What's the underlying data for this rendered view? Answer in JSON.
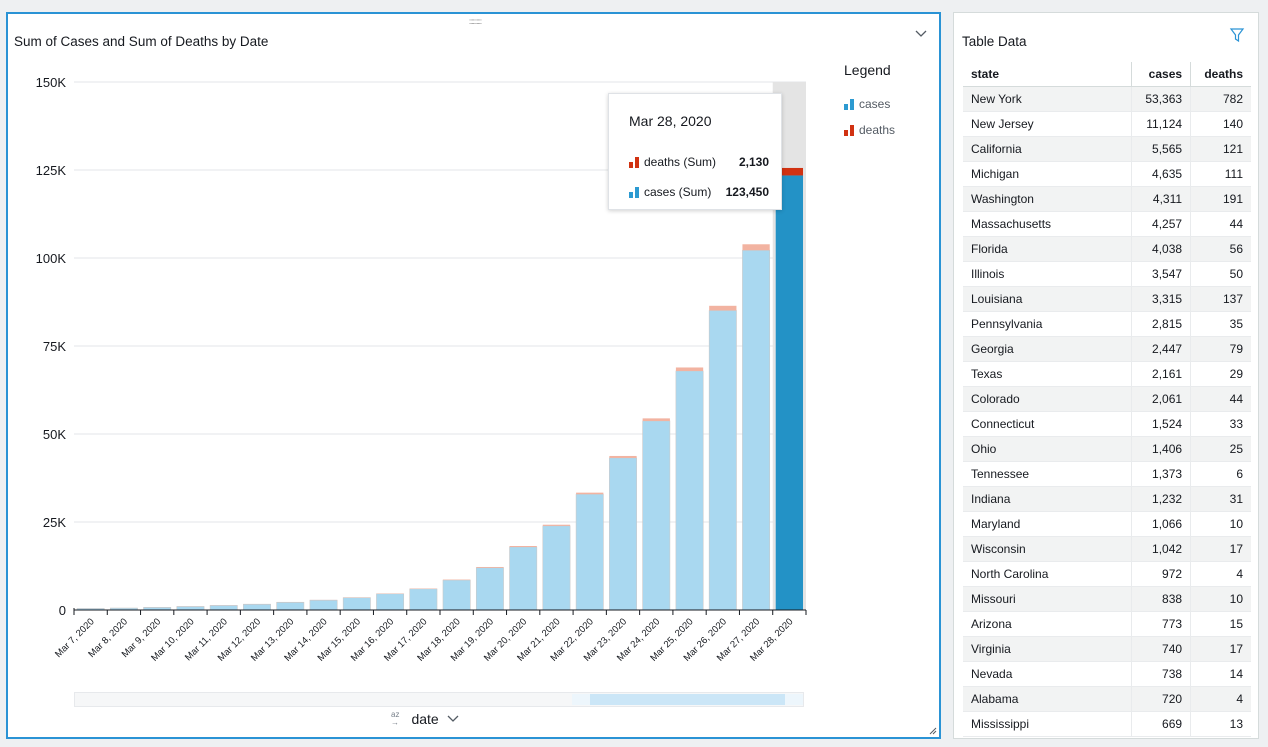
{
  "chart_panel": {
    "title": "Sum of Cases and Sum of Deaths by Date",
    "legend_title": "Legend",
    "legend": [
      {
        "label": "cases",
        "color": "#2c9ad1"
      },
      {
        "label": "deaths",
        "color": "#d13212"
      }
    ],
    "tooltip": {
      "date": "Mar 28, 2020",
      "rows": [
        {
          "label": "deaths (Sum)",
          "value": "2,130",
          "color": "#d13212"
        },
        {
          "label": "cases (Sum)",
          "value": "123,450",
          "color": "#2c9ad1"
        }
      ]
    },
    "x_field": {
      "label": "date",
      "sort_icon": "az-sort-icon",
      "chevron": "chevron-down-icon"
    },
    "menu_icon": "chevron-down-icon"
  },
  "chart_data": {
    "type": "bar",
    "stacked": true,
    "title": "Sum of Cases and Sum of Deaths by Date",
    "xlabel": "date",
    "ylabel": "",
    "ylim": [
      0,
      150000
    ],
    "yticks": [
      0,
      25000,
      50000,
      75000,
      100000,
      125000,
      150000
    ],
    "ytick_labels": [
      "0",
      "25K",
      "50K",
      "75K",
      "100K",
      "125K",
      "150K"
    ],
    "categories": [
      "Mar 7, 2020",
      "Mar 8, 2020",
      "Mar 9, 2020",
      "Mar 10, 2020",
      "Mar 11, 2020",
      "Mar 12, 2020",
      "Mar 13, 2020",
      "Mar 14, 2020",
      "Mar 15, 2020",
      "Mar 16, 2020",
      "Mar 17, 2020",
      "Mar 18, 2020",
      "Mar 19, 2020",
      "Mar 20, 2020",
      "Mar 21, 2020",
      "Mar 22, 2020",
      "Mar 23, 2020",
      "Mar 24, 2020",
      "Mar 25, 2020",
      "Mar 26, 2020",
      "Mar 27, 2020",
      "Mar 28, 2020"
    ],
    "series": [
      {
        "name": "cases",
        "values": [
          430,
          550,
          750,
          1000,
          1300,
          1650,
          2200,
          2800,
          3500,
          4600,
          6000,
          8500,
          12000,
          17900,
          23900,
          32900,
          43200,
          53700,
          67900,
          85100,
          102200,
          123450
        ]
      },
      {
        "name": "deaths",
        "values": [
          20,
          25,
          30,
          35,
          40,
          45,
          55,
          60,
          70,
          90,
          110,
          140,
          220,
          280,
          330,
          440,
          560,
          740,
          1000,
          1320,
          1700,
          2130
        ]
      }
    ],
    "highlighted_category": "Mar 28, 2020",
    "grid": true,
    "legend_position": "right"
  },
  "table_panel": {
    "title": "Table Data",
    "filter_icon": "filter-icon",
    "columns": [
      "state",
      "cases",
      "deaths"
    ],
    "rows": [
      [
        "New York",
        "53,363",
        "782"
      ],
      [
        "New Jersey",
        "11,124",
        "140"
      ],
      [
        "California",
        "5,565",
        "121"
      ],
      [
        "Michigan",
        "4,635",
        "111"
      ],
      [
        "Washington",
        "4,311",
        "191"
      ],
      [
        "Massachusetts",
        "4,257",
        "44"
      ],
      [
        "Florida",
        "4,038",
        "56"
      ],
      [
        "Illinois",
        "3,547",
        "50"
      ],
      [
        "Louisiana",
        "3,315",
        "137"
      ],
      [
        "Pennsylvania",
        "2,815",
        "35"
      ],
      [
        "Georgia",
        "2,447",
        "79"
      ],
      [
        "Texas",
        "2,161",
        "29"
      ],
      [
        "Colorado",
        "2,061",
        "44"
      ],
      [
        "Connecticut",
        "1,524",
        "33"
      ],
      [
        "Ohio",
        "1,406",
        "25"
      ],
      [
        "Tennessee",
        "1,373",
        "6"
      ],
      [
        "Indiana",
        "1,232",
        "31"
      ],
      [
        "Maryland",
        "1,066",
        "10"
      ],
      [
        "Wisconsin",
        "1,042",
        "17"
      ],
      [
        "North Carolina",
        "972",
        "4"
      ],
      [
        "Missouri",
        "838",
        "10"
      ],
      [
        "Arizona",
        "773",
        "15"
      ],
      [
        "Virginia",
        "740",
        "17"
      ],
      [
        "Nevada",
        "738",
        "14"
      ],
      [
        "Alabama",
        "720",
        "4"
      ],
      [
        "Mississippi",
        "669",
        "13"
      ]
    ]
  },
  "colors": {
    "cases": "#a9d8f0",
    "cases_highlight": "#2392c6",
    "deaths": "#f2b3a1",
    "deaths_highlight": "#d13212",
    "accent": "#2a93d5"
  }
}
